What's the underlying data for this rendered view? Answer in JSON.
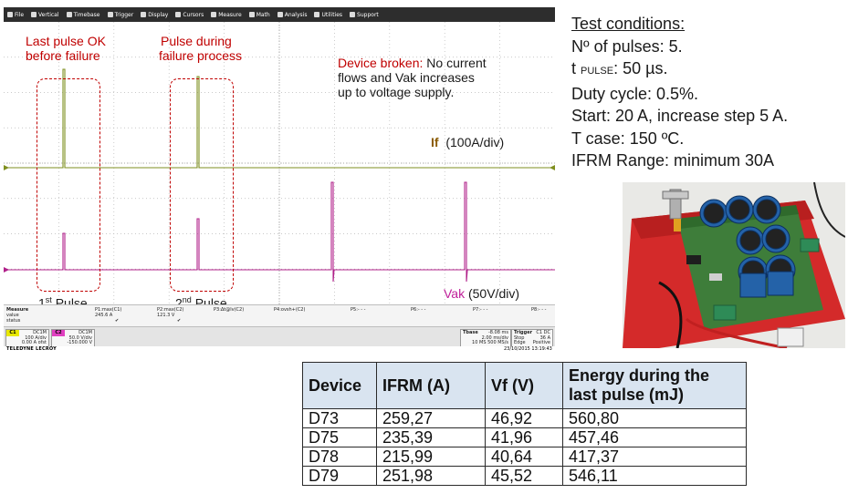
{
  "scope": {
    "menu": [
      {
        "label": "File",
        "icon": "file-icon"
      },
      {
        "label": "Vertical",
        "icon": "vertical-icon"
      },
      {
        "label": "Timebase",
        "icon": "timebase-icon"
      },
      {
        "label": "Trigger",
        "icon": "trigger-icon"
      },
      {
        "label": "Display",
        "icon": "display-icon"
      },
      {
        "label": "Cursors",
        "icon": "cursors-icon"
      },
      {
        "label": "Measure",
        "icon": "measure-icon"
      },
      {
        "label": "Math",
        "icon": "math-icon"
      },
      {
        "label": "Analysis",
        "icon": "analysis-icon"
      },
      {
        "label": "Utilities",
        "icon": "utilities-icon"
      },
      {
        "label": "Support",
        "icon": "support-icon"
      }
    ],
    "colors": {
      "if_trace": "#7f8f1f",
      "vak_trace": "#b0208a",
      "grid": "#b8b8b8",
      "annotation_red": "#c00000",
      "if_label": "#8a5a00",
      "vak_label": "#c0209a"
    },
    "annotations": {
      "last_pulse_ok": [
        "Last pulse OK",
        "before failure"
      ],
      "pulse_during": [
        "Pulse during",
        "failure process"
      ],
      "device_broken_red": "Device broken:",
      "device_broken_black": [
        "No current",
        "flows and Vak increases",
        "up to voltage supply."
      ],
      "if_label": "If",
      "if_unit": "(100A/div)",
      "vak_label": "Vak",
      "vak_unit": "(50V/div)",
      "first_pulse": [
        "1",
        "st",
        " Pulse"
      ],
      "second_pulse": [
        "2",
        "nd",
        " Pulse"
      ]
    },
    "measure": {
      "header": "Measure",
      "row2": "value",
      "row3": "status",
      "cols": [
        {
          "name": "P1:max(C1)",
          "value": "245.6 A",
          "status": "✔"
        },
        {
          "name": "P2:max(C2)",
          "value": "121.3 V",
          "status": "✔"
        },
        {
          "name": "P3:Δt@lv(C2)",
          "value": "",
          "status": ""
        },
        {
          "name": "P4:ovsh+(C2)",
          "value": "",
          "status": ""
        },
        {
          "name": "P5:- - -",
          "value": "",
          "status": ""
        },
        {
          "name": "P6:- - -",
          "value": "",
          "status": ""
        },
        {
          "name": "P7:- - -",
          "value": "",
          "status": ""
        },
        {
          "name": "P8:- - -",
          "value": "",
          "status": ""
        }
      ]
    },
    "channels": {
      "c1": {
        "tag": "C1",
        "coupling": "DC1M",
        "scale": "100 A/div",
        "offset": "0.00 A ofst"
      },
      "c2": {
        "tag": "C2",
        "coupling": "DC1M",
        "scale": "50.0 V/div",
        "offset": "-150.000 V"
      },
      "tbase": {
        "label": "Tbase",
        "pos": "-8.08 ms",
        "div": "2.00 ms/div",
        "rate": "10 MS   500 MS/s"
      },
      "trigger": {
        "label": "Trigger",
        "src": "C1 DC",
        "mode": "Stop",
        "type": "Edge",
        "level": "36 A",
        "slope": "Positive"
      }
    },
    "brand": "TELEDYNE LECROY",
    "timestamp": "23/10/2015 13:19:43"
  },
  "conditions": {
    "title": "Test conditions:",
    "pulses": "Nº of pulses: 5.",
    "t_prefix": "t ",
    "t_sub": "PULSE",
    "t_suffix": ": 50 µs.",
    "duty": "Duty cycle: 0.5%.",
    "start": "Start: 20 A, increase step 5 A.",
    "tcase": "T case: 150 ºC.",
    "range": "IFRM Range: minimum 30A"
  },
  "table": {
    "headers": [
      "Device",
      "IFRM (A)",
      "Vf (V)",
      "Energy during the last pulse (mJ)"
    ],
    "rows": [
      [
        "D73",
        "259,27",
        "46,92",
        "560,80"
      ],
      [
        "D75",
        "235,39",
        "41,96",
        "457,46"
      ],
      [
        "D78",
        "215,99",
        "40,64",
        "417,37"
      ],
      [
        "D79",
        "251,98",
        "45,52",
        "546,11"
      ]
    ]
  }
}
